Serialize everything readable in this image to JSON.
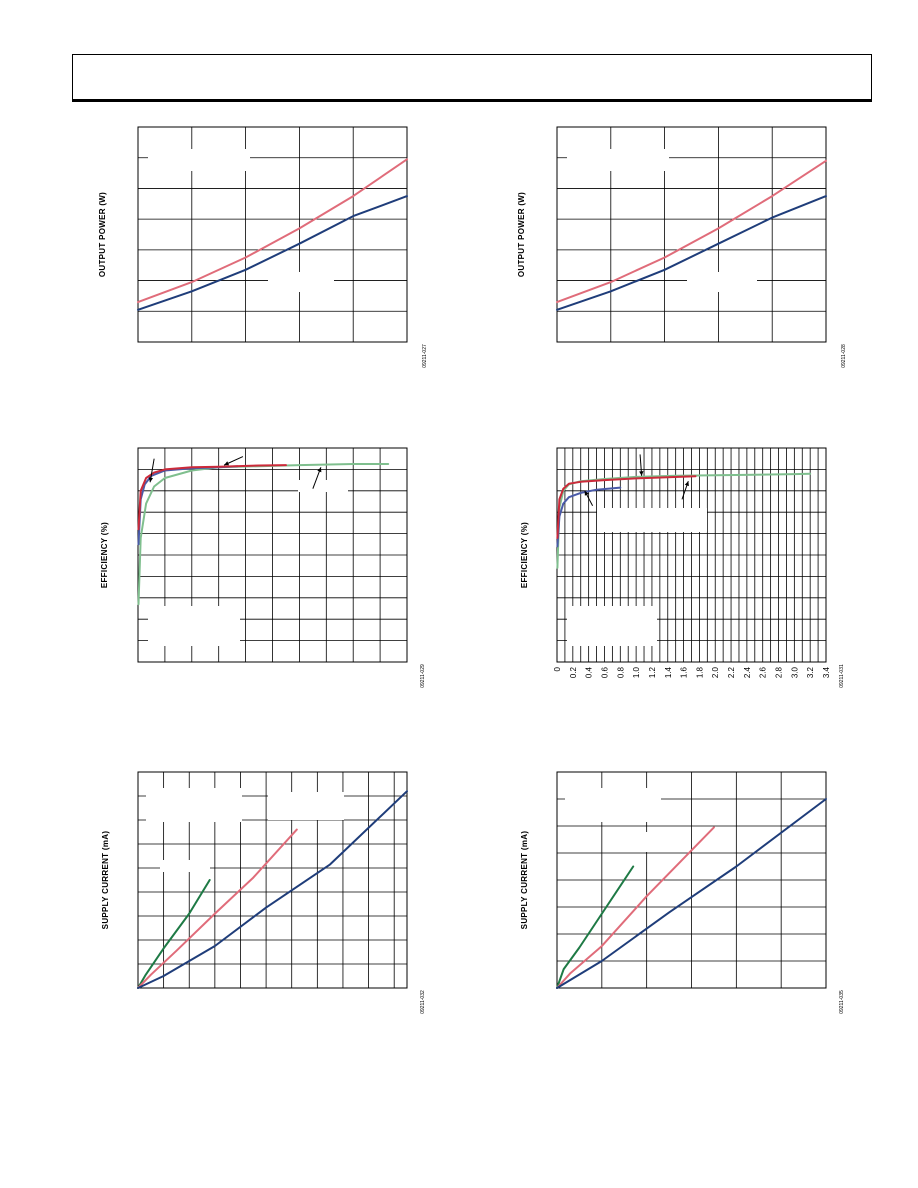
{
  "header": {},
  "chart_data": [
    {
      "id": "output-power-left",
      "type": "line",
      "ylabel": "OUTPUT POWER (W)",
      "figure_id": "09211-027",
      "xlim": [
        0,
        5
      ],
      "ylim": [
        0,
        7
      ],
      "grid": true,
      "x_gridlines": 5,
      "y_gridlines": 7,
      "series": [
        {
          "color": "#e06c7a",
          "x": [
            0,
            1,
            2,
            3,
            4,
            5
          ],
          "y": [
            1.3,
            1.95,
            2.75,
            3.7,
            4.75,
            5.95
          ]
        },
        {
          "color": "#1f3d7a",
          "x": [
            0,
            1,
            2,
            3,
            4,
            5
          ],
          "y": [
            1.05,
            1.65,
            2.35,
            3.2,
            4.1,
            4.75
          ]
        }
      ]
    },
    {
      "id": "output-power-right",
      "type": "line",
      "ylabel": "OUTPUT POWER (W)",
      "figure_id": "09211-028",
      "xlim": [
        0,
        5
      ],
      "ylim": [
        0,
        7
      ],
      "grid": true,
      "x_gridlines": 5,
      "y_gridlines": 7,
      "series": [
        {
          "color": "#e06c7a",
          "x": [
            0,
            1,
            2,
            3,
            4,
            5
          ],
          "y": [
            1.3,
            1.95,
            2.75,
            3.7,
            4.75,
            5.9
          ]
        },
        {
          "color": "#1f3d7a",
          "x": [
            0,
            1,
            2,
            3,
            4,
            5
          ],
          "y": [
            1.05,
            1.65,
            2.35,
            3.2,
            4.05,
            4.75
          ]
        }
      ]
    },
    {
      "id": "efficiency-left",
      "type": "line",
      "ylabel": "EFFICIENCY (%)",
      "figure_id": "09211-029",
      "xlim": [
        0,
        10
      ],
      "ylim": [
        0,
        100
      ],
      "grid": true,
      "x_gridlines": 10,
      "y_gridlines": 10,
      "series": [
        {
          "color": "#7fbf8e",
          "x": [
            0.02,
            0.1,
            0.3,
            0.6,
            1.0,
            2.0,
            3.0,
            4.5,
            6.0,
            8.0,
            9.3
          ],
          "y": [
            27,
            58,
            74,
            82,
            86,
            89.5,
            91,
            91.5,
            92,
            92.5,
            92.5
          ]
        },
        {
          "color": "#4a5aa8",
          "x": [
            0.02,
            0.1,
            0.25,
            0.5,
            1.0,
            2.0,
            3.0,
            3.7
          ],
          "y": [
            55,
            76,
            83,
            87,
            89.5,
            90.5,
            91,
            91.5
          ]
        },
        {
          "color": "#cc2a3a",
          "x": [
            0.02,
            0.1,
            0.3,
            0.6,
            1.0,
            2.0,
            3.0,
            4.5,
            5.5
          ],
          "y": [
            62,
            80,
            86,
            88.5,
            90,
            91,
            91.2,
            91.8,
            92
          ]
        }
      ],
      "arrows": [
        {
          "from": [
            0.6,
            95
          ],
          "to": [
            0.45,
            84
          ]
        },
        {
          "from": [
            3.9,
            96
          ],
          "to": [
            3.2,
            92
          ]
        },
        {
          "from": [
            6.5,
            81
          ],
          "to": [
            6.8,
            91
          ]
        }
      ]
    },
    {
      "id": "efficiency-right",
      "type": "line",
      "ylabel": "EFFICIENCY (%)",
      "figure_id": "09211-031",
      "xlim": [
        0,
        3.4
      ],
      "ylim": [
        0,
        100
      ],
      "grid": true,
      "x_gridlines": 34,
      "y_gridlines": 10,
      "x_ticks": [
        "0",
        "0.2",
        "0.4",
        "0.6",
        "0.8",
        "1.0",
        "1.2",
        "1.4",
        "1.6",
        "1.8",
        "2.0",
        "2.2",
        "2.4",
        "2.6",
        "2.8",
        "3.0",
        "3.2",
        "3.4"
      ],
      "series": [
        {
          "color": "#7fbf8e",
          "x": [
            0.005,
            0.03,
            0.08,
            0.15,
            0.3,
            0.6,
            1.0,
            1.5,
            2.0,
            2.5,
            3.0,
            3.2
          ],
          "y": [
            44,
            72,
            80,
            83,
            84.5,
            85.5,
            86.5,
            87,
            87.3,
            87.5,
            87.8,
            88
          ]
        },
        {
          "color": "#4a5aa8",
          "x": [
            0.005,
            0.03,
            0.08,
            0.15,
            0.3,
            0.5,
            0.8
          ],
          "y": [
            54,
            68,
            74,
            77,
            79,
            80.5,
            81.5
          ]
        },
        {
          "color": "#cc2a3a",
          "x": [
            0.005,
            0.03,
            0.08,
            0.15,
            0.3,
            0.6,
            1.0,
            1.4,
            1.75
          ],
          "y": [
            58,
            76,
            81,
            83.3,
            84.2,
            85,
            85.8,
            86.3,
            86.8
          ]
        }
      ],
      "arrows": [
        {
          "from": [
            1.05,
            97
          ],
          "to": [
            1.07,
            87
          ]
        },
        {
          "from": [
            0.45,
            73
          ],
          "to": [
            0.35,
            80
          ]
        },
        {
          "from": [
            1.58,
            76
          ],
          "to": [
            1.66,
            84.5
          ]
        }
      ]
    },
    {
      "id": "supply-current-left",
      "type": "line",
      "ylabel": "SUPPLY CURRENT (mA)",
      "figure_id": "09211-032",
      "xlim": [
        0,
        10.5
      ],
      "ylim": [
        0,
        9
      ],
      "grid": true,
      "x_gridlines": 10.5,
      "y_gridlines": 9,
      "series": [
        {
          "color": "#1e7a45",
          "x": [
            0,
            0.3,
            1.0,
            2.0,
            2.8
          ],
          "y": [
            0,
            0.55,
            1.65,
            3.1,
            4.5
          ]
        },
        {
          "color": "#e06c7a",
          "x": [
            0,
            0.5,
            1.5,
            3.0,
            4.5,
            6.2
          ],
          "y": [
            0,
            0.55,
            1.55,
            3.1,
            4.6,
            6.6
          ]
        },
        {
          "color": "#1f3d7a",
          "x": [
            0,
            1.0,
            3.0,
            5.0,
            7.5,
            10.5
          ],
          "y": [
            0,
            0.5,
            1.75,
            3.35,
            5.15,
            8.2
          ]
        }
      ]
    },
    {
      "id": "supply-current-right",
      "type": "line",
      "ylabel": "SUPPLY CURRENT (mA)",
      "figure_id": "09211-035",
      "xlim": [
        0,
        6
      ],
      "ylim": [
        0,
        8
      ],
      "grid": true,
      "x_gridlines": 6,
      "y_gridlines": 8,
      "series": [
        {
          "color": "#1e7a45",
          "x": [
            0,
            0.15,
            0.5,
            1.1,
            1.7
          ],
          "y": [
            0,
            0.7,
            1.5,
            3.0,
            4.5
          ]
        },
        {
          "color": "#e06c7a",
          "x": [
            0,
            0.3,
            1.0,
            2.0,
            3.5
          ],
          "y": [
            0,
            0.55,
            1.55,
            3.4,
            5.95
          ]
        },
        {
          "color": "#1f3d7a",
          "x": [
            0,
            1.0,
            2.5,
            4.0,
            6.0
          ],
          "y": [
            0,
            1.0,
            2.8,
            4.5,
            7.0
          ]
        }
      ]
    }
  ]
}
